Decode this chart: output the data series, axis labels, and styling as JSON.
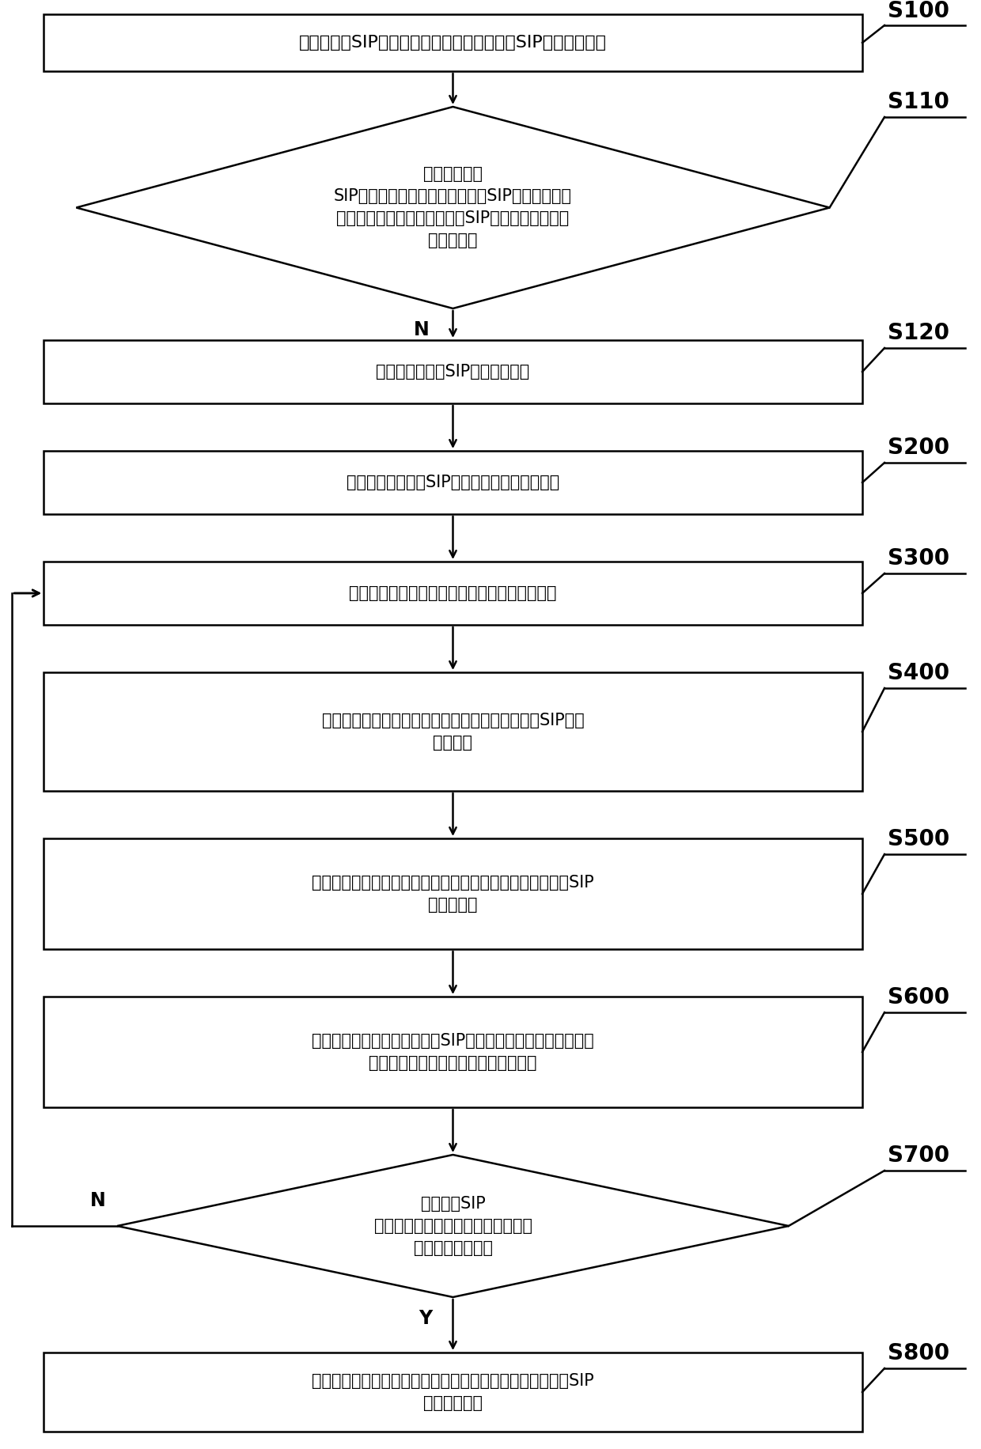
{
  "bg_color": "#ffffff",
  "border_color": "#000000",
  "text_color": "#000000",
  "title_text": "当待检测的SIP模组位于检测平台时，对所述SIP模组进行对焦",
  "s100_label": "S100",
  "s110_label": "S110",
  "s110_text": "判断待检测的\nSIP模组的种类是否与之前检测的SIP模组的种类一\n致，若一致，则延用检测之前SIP模组时的焦距，不\n再重新对焦",
  "s120_label": "S120",
  "s120_text": "对待检测的所述SIP模组进行对焦",
  "s200_label": "S200",
  "s200_text": "判断待检测的所述SIP模组需要检测的表面缺陷",
  "s300_label": "S300",
  "s300_text": "根据需要检测的表面缺陷，获取对应的检测模式",
  "s400_label": "S400",
  "s400_text": "根据当前的检测模式，选择相应的灯源对待检测的SIP模组\n进行打光",
  "s500_label": "S500",
  "s500_text": "并根据当前的所述检测模式，采用对应的色彩通道获取所述SIP\n模组的影像",
  "s600_label": "S600",
  "s600_text": "在获取的所述影像中框选所述SIP模组特定待测表面的区域范围\n并设置灰阶对比，得到处理影像并存储",
  "s700_label": "S700",
  "s700_text": "判断所述SIP\n模组是否获取了在所有所述检测模式\n下的所有所述影像",
  "s800_label": "S800",
  "s800_text": "根据预设的缺陷检测标准和存储的所述处理影像，判定所述SIP\n模组是否合格",
  "n_label": "N",
  "y_label": "Y"
}
